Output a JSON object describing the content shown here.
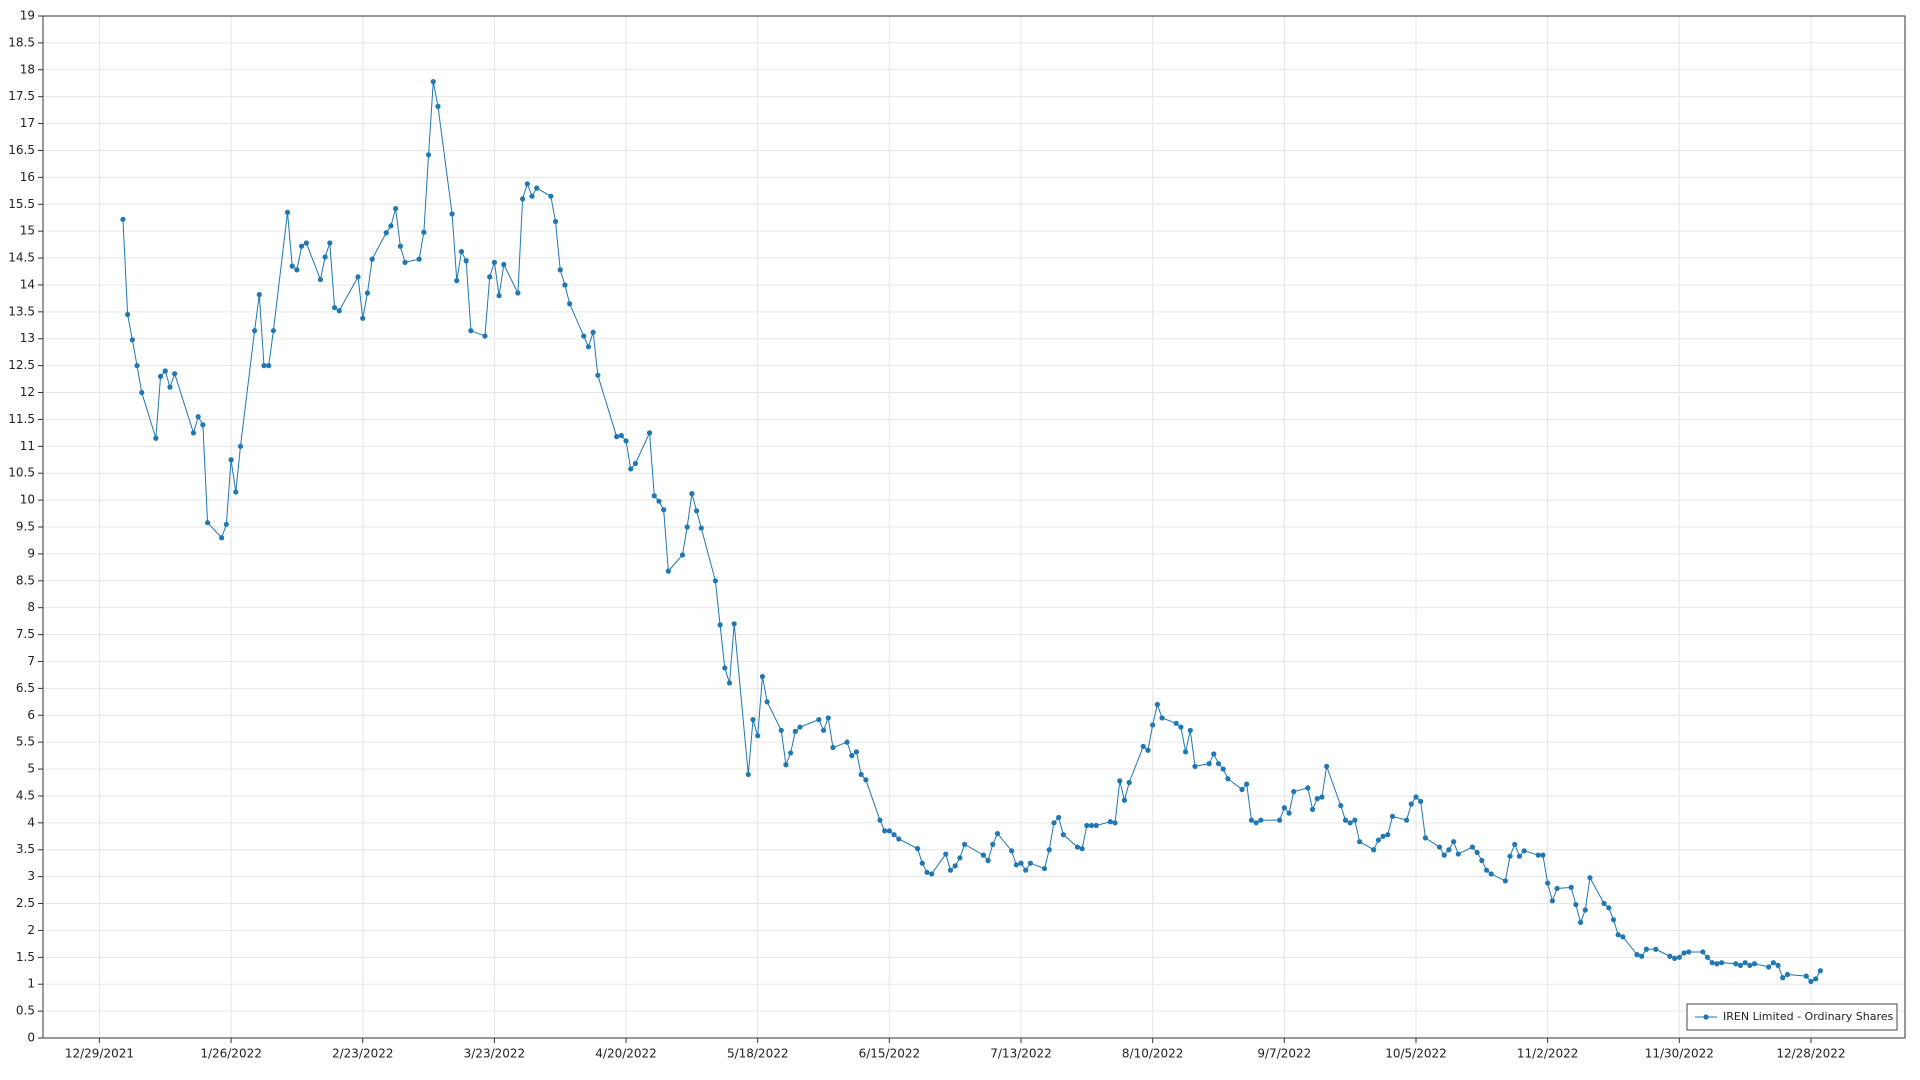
{
  "chart_data": {
    "type": "line",
    "series": [
      {
        "name": "IREN Limited - Ordinary Shares",
        "color": "#1f77b4",
        "values": [
          15.22,
          13.45,
          12.98,
          12.5,
          12.0,
          11.15,
          12.3,
          12.4,
          12.1,
          12.35,
          11.25,
          11.55,
          11.4,
          9.58,
          9.3,
          9.55,
          10.75,
          10.15,
          11.0,
          13.15,
          13.82,
          12.5,
          12.5,
          13.15,
          15.35,
          14.35,
          14.28,
          14.72,
          14.78,
          14.1,
          14.52,
          14.78,
          13.58,
          13.52,
          14.15,
          13.38,
          13.85,
          14.48,
          14.97,
          15.1,
          15.42,
          14.72,
          14.42,
          14.48,
          14.98,
          16.42,
          17.78,
          17.32,
          15.32,
          14.08,
          14.62,
          14.45,
          13.15,
          13.05,
          14.15,
          14.42,
          13.8,
          14.38,
          13.85,
          15.6,
          15.88,
          15.65,
          15.8,
          15.65,
          15.18,
          14.28,
          14.0,
          13.65,
          13.05,
          12.85,
          13.12,
          12.32,
          11.18,
          11.2,
          11.1,
          10.58,
          10.68,
          11.25,
          10.08,
          9.98,
          9.82,
          8.68,
          8.98,
          9.5,
          10.12,
          9.8,
          9.48,
          8.5,
          7.68,
          6.88,
          6.6,
          7.7,
          4.9,
          5.92,
          5.62,
          6.72,
          6.25,
          5.72,
          5.08,
          5.3,
          5.7,
          5.78,
          5.92,
          5.72,
          5.95,
          5.4,
          5.5,
          5.25,
          5.32,
          4.9,
          4.8,
          4.05,
          3.85,
          3.85,
          3.78,
          3.7,
          3.52,
          3.25,
          3.08,
          3.05,
          3.42,
          3.12,
          3.2,
          3.35,
          3.6,
          3.4,
          3.3,
          3.6,
          3.8,
          3.48,
          3.22,
          3.25,
          3.12,
          3.25,
          3.15,
          3.5,
          4.0,
          4.1,
          3.78,
          3.55,
          3.52,
          3.95,
          3.95,
          3.95,
          4.02,
          4.0,
          4.78,
          4.42,
          4.75,
          5.42,
          5.35,
          5.82,
          6.2,
          5.95,
          5.85,
          5.78,
          5.32,
          5.72,
          5.05,
          5.1,
          5.28,
          5.1,
          5.0,
          4.82,
          4.62,
          4.72,
          4.05,
          4.0,
          4.05,
          4.05,
          4.28,
          4.18,
          4.58,
          4.65,
          4.25,
          4.45,
          4.48,
          5.05,
          4.32,
          4.05,
          4.0,
          4.05,
          3.65,
          3.5,
          3.68,
          3.75,
          3.78,
          4.12,
          4.05,
          4.35,
          4.48,
          4.4,
          3.72,
          3.55,
          3.4,
          3.5,
          3.65,
          3.42,
          3.55,
          3.45,
          3.3,
          3.12,
          3.05,
          2.92,
          3.38,
          3.6,
          3.38,
          3.48,
          3.4,
          3.4,
          2.88,
          2.55,
          2.78,
          2.8,
          2.48,
          2.15,
          2.38,
          2.98,
          2.5,
          2.42,
          2.2,
          1.92,
          1.88,
          1.55,
          1.52,
          1.65,
          1.65,
          1.52,
          1.48,
          1.5,
          1.58,
          1.6,
          1.6,
          1.5,
          1.4,
          1.38,
          1.4,
          1.38,
          1.35,
          1.4,
          1.35,
          1.38,
          1.32,
          1.4,
          1.35,
          1.12,
          1.18,
          1.15,
          1.05,
          1.1,
          1.25
        ]
      }
    ],
    "x": [
      "1/3/2022",
      "1/4/2022",
      "1/5/2022",
      "1/6/2022",
      "1/7/2022",
      "1/10/2022",
      "1/11/2022",
      "1/12/2022",
      "1/13/2022",
      "1/14/2022",
      "1/18/2022",
      "1/19/2022",
      "1/20/2022",
      "1/21/2022",
      "1/24/2022",
      "1/25/2022",
      "1/26/2022",
      "1/27/2022",
      "1/28/2022",
      "1/31/2022",
      "2/1/2022",
      "2/2/2022",
      "2/3/2022",
      "2/4/2022",
      "2/7/2022",
      "2/8/2022",
      "2/9/2022",
      "2/10/2022",
      "2/11/2022",
      "2/14/2022",
      "2/15/2022",
      "2/16/2022",
      "2/17/2022",
      "2/18/2022",
      "2/22/2022",
      "2/23/2022",
      "2/24/2022",
      "2/25/2022",
      "2/28/2022",
      "3/1/2022",
      "3/2/2022",
      "3/3/2022",
      "3/4/2022",
      "3/7/2022",
      "3/8/2022",
      "3/9/2022",
      "3/10/2022",
      "3/11/2022",
      "3/14/2022",
      "3/15/2022",
      "3/16/2022",
      "3/17/2022",
      "3/18/2022",
      "3/21/2022",
      "3/22/2022",
      "3/23/2022",
      "3/24/2022",
      "3/25/2022",
      "3/28/2022",
      "3/29/2022",
      "3/30/2022",
      "3/31/2022",
      "4/1/2022",
      "4/4/2022",
      "4/5/2022",
      "4/6/2022",
      "4/7/2022",
      "4/8/2022",
      "4/11/2022",
      "4/12/2022",
      "4/13/2022",
      "4/14/2022",
      "4/18/2022",
      "4/19/2022",
      "4/20/2022",
      "4/21/2022",
      "4/22/2022",
      "4/25/2022",
      "4/26/2022",
      "4/27/2022",
      "4/28/2022",
      "4/29/2022",
      "5/2/2022",
      "5/3/2022",
      "5/4/2022",
      "5/5/2022",
      "5/6/2022",
      "5/9/2022",
      "5/10/2022",
      "5/11/2022",
      "5/12/2022",
      "5/13/2022",
      "5/16/2022",
      "5/17/2022",
      "5/18/2022",
      "5/19/2022",
      "5/20/2022",
      "5/23/2022",
      "5/24/2022",
      "5/25/2022",
      "5/26/2022",
      "5/27/2022",
      "5/31/2022",
      "6/1/2022",
      "6/2/2022",
      "6/3/2022",
      "6/6/2022",
      "6/7/2022",
      "6/8/2022",
      "6/9/2022",
      "6/10/2022",
      "6/13/2022",
      "6/14/2022",
      "6/15/2022",
      "6/16/2022",
      "6/17/2022",
      "6/21/2022",
      "6/22/2022",
      "6/23/2022",
      "6/24/2022",
      "6/27/2022",
      "6/28/2022",
      "6/29/2022",
      "6/30/2022",
      "7/1/2022",
      "7/5/2022",
      "7/6/2022",
      "7/7/2022",
      "7/8/2022",
      "7/11/2022",
      "7/12/2022",
      "7/13/2022",
      "7/14/2022",
      "7/15/2022",
      "7/18/2022",
      "7/19/2022",
      "7/20/2022",
      "7/21/2022",
      "7/22/2022",
      "7/25/2022",
      "7/26/2022",
      "7/27/2022",
      "7/28/2022",
      "7/29/2022",
      "8/1/2022",
      "8/2/2022",
      "8/3/2022",
      "8/4/2022",
      "8/5/2022",
      "8/8/2022",
      "8/9/2022",
      "8/10/2022",
      "8/11/2022",
      "8/12/2022",
      "8/15/2022",
      "8/16/2022",
      "8/17/2022",
      "8/18/2022",
      "8/19/2022",
      "8/22/2022",
      "8/23/2022",
      "8/24/2022",
      "8/25/2022",
      "8/26/2022",
      "8/29/2022",
      "8/30/2022",
      "8/31/2022",
      "9/1/2022",
      "9/2/2022",
      "9/6/2022",
      "9/7/2022",
      "9/8/2022",
      "9/9/2022",
      "9/12/2022",
      "9/13/2022",
      "9/14/2022",
      "9/15/2022",
      "9/16/2022",
      "9/19/2022",
      "9/20/2022",
      "9/21/2022",
      "9/22/2022",
      "9/23/2022",
      "9/26/2022",
      "9/27/2022",
      "9/28/2022",
      "9/29/2022",
      "9/30/2022",
      "10/3/2022",
      "10/4/2022",
      "10/5/2022",
      "10/6/2022",
      "10/7/2022",
      "10/10/2022",
      "10/11/2022",
      "10/12/2022",
      "10/13/2022",
      "10/14/2022",
      "10/17/2022",
      "10/18/2022",
      "10/19/2022",
      "10/20/2022",
      "10/21/2022",
      "10/24/2022",
      "10/25/2022",
      "10/26/2022",
      "10/27/2022",
      "10/28/2022",
      "10/31/2022",
      "11/1/2022",
      "11/2/2022",
      "11/3/2022",
      "11/4/2022",
      "11/7/2022",
      "11/8/2022",
      "11/9/2022",
      "11/10/2022",
      "11/11/2022",
      "11/14/2022",
      "11/15/2022",
      "11/16/2022",
      "11/17/2022",
      "11/18/2022",
      "11/21/2022",
      "11/22/2022",
      "11/23/2022",
      "11/25/2022",
      "11/28/2022",
      "11/29/2022",
      "11/30/2022",
      "12/1/2022",
      "12/2/2022",
      "12/5/2022",
      "12/6/2022",
      "12/7/2022",
      "12/8/2022",
      "12/9/2022",
      "12/12/2022",
      "12/13/2022",
      "12/14/2022",
      "12/15/2022",
      "12/16/2022",
      "12/19/2022",
      "12/20/2022",
      "12/21/2022",
      "12/22/2022",
      "12/23/2022",
      "12/27/2022",
      "12/28/2022",
      "12/29/2022",
      "12/30/2022"
    ],
    "xlim": [
      "12/17/2021",
      "1/17/2023"
    ],
    "xticks": [
      "12/29/2021",
      "1/26/2022",
      "2/23/2022",
      "3/23/2022",
      "4/20/2022",
      "5/18/2022",
      "6/15/2022",
      "7/13/2022",
      "8/10/2022",
      "9/7/2022",
      "10/5/2022",
      "11/2/2022",
      "11/30/2022",
      "12/28/2022"
    ],
    "ylim": [
      0,
      19
    ],
    "yticks": [
      0,
      0.5,
      1,
      1.5,
      2,
      2.5,
      3,
      3.5,
      4,
      4.5,
      5,
      5.5,
      6,
      6.5,
      7,
      7.5,
      8,
      8.5,
      9,
      9.5,
      10,
      10.5,
      11,
      11.5,
      12,
      12.5,
      13,
      13.5,
      14,
      14.5,
      15,
      15.5,
      16,
      16.5,
      17,
      17.5,
      18,
      18.5,
      19
    ],
    "grid": true,
    "legend": "lower right",
    "markers": true
  }
}
